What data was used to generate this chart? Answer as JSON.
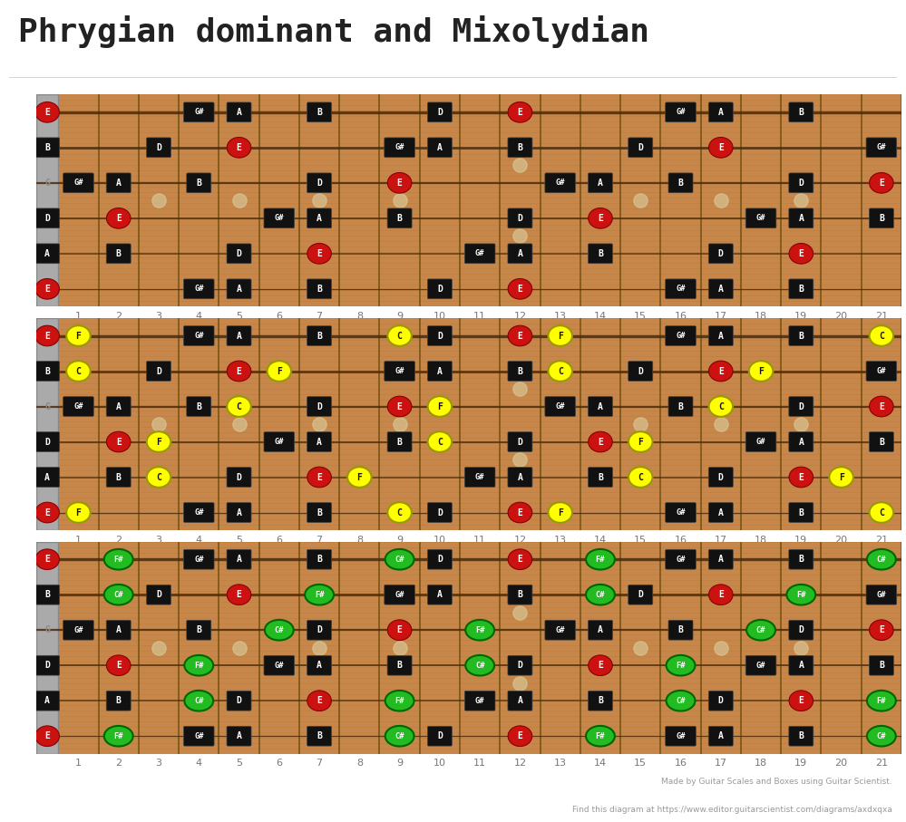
{
  "title": "Phrygian dominant and Mixolydian",
  "bg_color": "#ffffff",
  "wood_color": "#c8874a",
  "fret_color": "#7a5515",
  "marker_bg": "#111111",
  "marker_text": "#ffffff",
  "red_fill": "#cc1111",
  "yellow_fill": "#ffff00",
  "green_fill": "#22bb22",
  "nut_color": "#aaaaaa",
  "num_frets": 21,
  "num_strings": 6,
  "open_strings": [
    "E",
    "B",
    "G",
    "D",
    "A",
    "E"
  ],
  "fret_markers_single": [
    3,
    5,
    7,
    9,
    15,
    17,
    19
  ],
  "fret_markers_double": [
    12
  ],
  "diagram1": {
    "notes": [
      [
        1,
        "E",
        0,
        "red"
      ],
      [
        1,
        "G#",
        4,
        ""
      ],
      [
        1,
        "A",
        5,
        ""
      ],
      [
        1,
        "B",
        7,
        ""
      ],
      [
        1,
        "D",
        10,
        ""
      ],
      [
        1,
        "E",
        12,
        "red"
      ],
      [
        1,
        "G#",
        16,
        ""
      ],
      [
        1,
        "A",
        17,
        ""
      ],
      [
        1,
        "B",
        19,
        ""
      ],
      [
        2,
        "B",
        0,
        ""
      ],
      [
        2,
        "D",
        3,
        ""
      ],
      [
        2,
        "E",
        5,
        "red"
      ],
      [
        2,
        "G#",
        9,
        ""
      ],
      [
        2,
        "A",
        10,
        ""
      ],
      [
        2,
        "B",
        12,
        ""
      ],
      [
        2,
        "D",
        15,
        ""
      ],
      [
        2,
        "E",
        17,
        "red"
      ],
      [
        2,
        "G#",
        21,
        ""
      ],
      [
        3,
        "G#",
        1,
        ""
      ],
      [
        3,
        "A",
        2,
        ""
      ],
      [
        3,
        "B",
        4,
        ""
      ],
      [
        3,
        "D",
        7,
        ""
      ],
      [
        3,
        "E",
        9,
        "red"
      ],
      [
        3,
        "G#",
        13,
        ""
      ],
      [
        3,
        "A",
        14,
        ""
      ],
      [
        3,
        "B",
        16,
        ""
      ],
      [
        3,
        "D",
        19,
        ""
      ],
      [
        3,
        "E",
        21,
        "red"
      ],
      [
        4,
        "D",
        0,
        ""
      ],
      [
        4,
        "E",
        2,
        "red"
      ],
      [
        4,
        "G#",
        6,
        ""
      ],
      [
        4,
        "A",
        7,
        ""
      ],
      [
        4,
        "B",
        9,
        ""
      ],
      [
        4,
        "D",
        12,
        ""
      ],
      [
        4,
        "E",
        14,
        "red"
      ],
      [
        4,
        "G#",
        18,
        ""
      ],
      [
        4,
        "A",
        19,
        ""
      ],
      [
        4,
        "B",
        21,
        ""
      ],
      [
        5,
        "A",
        0,
        ""
      ],
      [
        5,
        "B",
        2,
        ""
      ],
      [
        5,
        "D",
        5,
        ""
      ],
      [
        5,
        "E",
        7,
        "red"
      ],
      [
        5,
        "G#",
        11,
        ""
      ],
      [
        5,
        "A",
        12,
        ""
      ],
      [
        5,
        "B",
        14,
        ""
      ],
      [
        5,
        "D",
        17,
        ""
      ],
      [
        5,
        "E",
        19,
        "red"
      ],
      [
        6,
        "E",
        0,
        "red"
      ],
      [
        6,
        "G#",
        4,
        ""
      ],
      [
        6,
        "A",
        5,
        ""
      ],
      [
        6,
        "B",
        7,
        ""
      ],
      [
        6,
        "D",
        10,
        ""
      ],
      [
        6,
        "E",
        12,
        "red"
      ],
      [
        6,
        "G#",
        16,
        ""
      ],
      [
        6,
        "A",
        17,
        ""
      ],
      [
        6,
        "B",
        19,
        ""
      ]
    ]
  },
  "diagram2": {
    "notes": [
      [
        1,
        "E",
        0,
        "red"
      ],
      [
        1,
        "F",
        1,
        "yellow"
      ],
      [
        1,
        "G#",
        4,
        ""
      ],
      [
        1,
        "A",
        5,
        ""
      ],
      [
        1,
        "B",
        7,
        ""
      ],
      [
        1,
        "C",
        9,
        "yellow"
      ],
      [
        1,
        "D",
        10,
        ""
      ],
      [
        1,
        "E",
        12,
        "red"
      ],
      [
        1,
        "F",
        13,
        "yellow"
      ],
      [
        1,
        "G#",
        16,
        ""
      ],
      [
        1,
        "A",
        17,
        ""
      ],
      [
        1,
        "B",
        19,
        ""
      ],
      [
        1,
        "C",
        21,
        "yellow"
      ],
      [
        2,
        "B",
        0,
        ""
      ],
      [
        2,
        "C",
        1,
        "yellow"
      ],
      [
        2,
        "D",
        3,
        ""
      ],
      [
        2,
        "E",
        5,
        "red"
      ],
      [
        2,
        "F",
        6,
        "yellow"
      ],
      [
        2,
        "G#",
        9,
        ""
      ],
      [
        2,
        "A",
        10,
        ""
      ],
      [
        2,
        "B",
        12,
        ""
      ],
      [
        2,
        "C",
        13,
        "yellow"
      ],
      [
        2,
        "D",
        15,
        ""
      ],
      [
        2,
        "E",
        17,
        "red"
      ],
      [
        2,
        "F",
        18,
        "yellow"
      ],
      [
        2,
        "G#",
        21,
        ""
      ],
      [
        3,
        "G#",
        1,
        ""
      ],
      [
        3,
        "A",
        2,
        ""
      ],
      [
        3,
        "B",
        4,
        ""
      ],
      [
        3,
        "C",
        5,
        "yellow"
      ],
      [
        3,
        "D",
        7,
        ""
      ],
      [
        3,
        "E",
        9,
        "red"
      ],
      [
        3,
        "F",
        10,
        "yellow"
      ],
      [
        3,
        "G#",
        13,
        ""
      ],
      [
        3,
        "A",
        14,
        ""
      ],
      [
        3,
        "B",
        16,
        ""
      ],
      [
        3,
        "C",
        17,
        "yellow"
      ],
      [
        3,
        "D",
        19,
        ""
      ],
      [
        3,
        "E",
        21,
        "red"
      ],
      [
        4,
        "D",
        0,
        ""
      ],
      [
        4,
        "E",
        2,
        "red"
      ],
      [
        4,
        "F",
        3,
        "yellow"
      ],
      [
        4,
        "G#",
        6,
        ""
      ],
      [
        4,
        "A",
        7,
        ""
      ],
      [
        4,
        "B",
        9,
        ""
      ],
      [
        4,
        "C",
        10,
        "yellow"
      ],
      [
        4,
        "D",
        12,
        ""
      ],
      [
        4,
        "E",
        14,
        "red"
      ],
      [
        4,
        "F",
        15,
        "yellow"
      ],
      [
        4,
        "G#",
        18,
        ""
      ],
      [
        4,
        "A",
        19,
        ""
      ],
      [
        4,
        "B",
        21,
        ""
      ],
      [
        5,
        "A",
        0,
        ""
      ],
      [
        5,
        "B",
        2,
        ""
      ],
      [
        5,
        "C",
        3,
        "yellow"
      ],
      [
        5,
        "D",
        5,
        ""
      ],
      [
        5,
        "E",
        7,
        "red"
      ],
      [
        5,
        "F",
        8,
        "yellow"
      ],
      [
        5,
        "G#",
        11,
        ""
      ],
      [
        5,
        "A",
        12,
        ""
      ],
      [
        5,
        "B",
        14,
        ""
      ],
      [
        5,
        "C",
        15,
        "yellow"
      ],
      [
        5,
        "D",
        17,
        ""
      ],
      [
        5,
        "E",
        19,
        "red"
      ],
      [
        5,
        "F",
        20,
        "yellow"
      ],
      [
        6,
        "E",
        0,
        "red"
      ],
      [
        6,
        "F",
        1,
        "yellow"
      ],
      [
        6,
        "G#",
        4,
        ""
      ],
      [
        6,
        "A",
        5,
        ""
      ],
      [
        6,
        "B",
        7,
        ""
      ],
      [
        6,
        "C",
        9,
        "yellow"
      ],
      [
        6,
        "D",
        10,
        ""
      ],
      [
        6,
        "E",
        12,
        "red"
      ],
      [
        6,
        "F",
        13,
        "yellow"
      ],
      [
        6,
        "G#",
        16,
        ""
      ],
      [
        6,
        "A",
        17,
        ""
      ],
      [
        6,
        "B",
        19,
        ""
      ],
      [
        6,
        "C",
        21,
        "yellow"
      ]
    ]
  },
  "diagram3": {
    "notes": [
      [
        1,
        "E",
        0,
        "red"
      ],
      [
        1,
        "F#",
        2,
        "green"
      ],
      [
        1,
        "G#",
        4,
        ""
      ],
      [
        1,
        "A",
        5,
        ""
      ],
      [
        1,
        "B",
        7,
        ""
      ],
      [
        1,
        "C#",
        9,
        "green"
      ],
      [
        1,
        "D",
        10,
        ""
      ],
      [
        1,
        "E",
        12,
        "red"
      ],
      [
        1,
        "F#",
        14,
        "green"
      ],
      [
        1,
        "G#",
        16,
        ""
      ],
      [
        1,
        "A",
        17,
        ""
      ],
      [
        1,
        "B",
        19,
        ""
      ],
      [
        1,
        "C#",
        21,
        "green"
      ],
      [
        2,
        "B",
        0,
        ""
      ],
      [
        2,
        "C#",
        2,
        "green"
      ],
      [
        2,
        "D",
        3,
        ""
      ],
      [
        2,
        "E",
        5,
        "red"
      ],
      [
        2,
        "F#",
        7,
        "green"
      ],
      [
        2,
        "G#",
        9,
        ""
      ],
      [
        2,
        "A",
        10,
        ""
      ],
      [
        2,
        "B",
        12,
        ""
      ],
      [
        2,
        "C#",
        14,
        "green"
      ],
      [
        2,
        "D",
        15,
        ""
      ],
      [
        2,
        "E",
        17,
        "red"
      ],
      [
        2,
        "F#",
        19,
        "green"
      ],
      [
        2,
        "G#",
        21,
        ""
      ],
      [
        3,
        "G#",
        1,
        ""
      ],
      [
        3,
        "A",
        2,
        ""
      ],
      [
        3,
        "B",
        4,
        ""
      ],
      [
        3,
        "C#",
        6,
        "green"
      ],
      [
        3,
        "D",
        7,
        ""
      ],
      [
        3,
        "E",
        9,
        "red"
      ],
      [
        3,
        "F#",
        11,
        "green"
      ],
      [
        3,
        "G#",
        13,
        ""
      ],
      [
        3,
        "A",
        14,
        ""
      ],
      [
        3,
        "B",
        16,
        ""
      ],
      [
        3,
        "C#",
        18,
        "green"
      ],
      [
        3,
        "D",
        19,
        ""
      ],
      [
        3,
        "E",
        21,
        "red"
      ],
      [
        4,
        "D",
        0,
        ""
      ],
      [
        4,
        "E",
        2,
        "red"
      ],
      [
        4,
        "F#",
        4,
        "green"
      ],
      [
        4,
        "G#",
        6,
        ""
      ],
      [
        4,
        "A",
        7,
        ""
      ],
      [
        4,
        "B",
        9,
        ""
      ],
      [
        4,
        "C#",
        11,
        "green"
      ],
      [
        4,
        "D",
        12,
        ""
      ],
      [
        4,
        "E",
        14,
        "red"
      ],
      [
        4,
        "F#",
        16,
        "green"
      ],
      [
        4,
        "G#",
        18,
        ""
      ],
      [
        4,
        "A",
        19,
        ""
      ],
      [
        4,
        "B",
        21,
        ""
      ],
      [
        5,
        "A",
        0,
        ""
      ],
      [
        5,
        "B",
        2,
        ""
      ],
      [
        5,
        "C#",
        4,
        "green"
      ],
      [
        5,
        "D",
        5,
        ""
      ],
      [
        5,
        "E",
        7,
        "red"
      ],
      [
        5,
        "F#",
        9,
        "green"
      ],
      [
        5,
        "G#",
        11,
        ""
      ],
      [
        5,
        "A",
        12,
        ""
      ],
      [
        5,
        "B",
        14,
        ""
      ],
      [
        5,
        "C#",
        16,
        "green"
      ],
      [
        5,
        "D",
        17,
        ""
      ],
      [
        5,
        "E",
        19,
        "red"
      ],
      [
        5,
        "F#",
        21,
        "green"
      ],
      [
        6,
        "E",
        0,
        "red"
      ],
      [
        6,
        "F#",
        2,
        "green"
      ],
      [
        6,
        "G#",
        4,
        ""
      ],
      [
        6,
        "A",
        5,
        ""
      ],
      [
        6,
        "B",
        7,
        ""
      ],
      [
        6,
        "C#",
        9,
        "green"
      ],
      [
        6,
        "D",
        10,
        ""
      ],
      [
        6,
        "E",
        12,
        "red"
      ],
      [
        6,
        "F#",
        14,
        "green"
      ],
      [
        6,
        "G#",
        16,
        ""
      ],
      [
        6,
        "A",
        17,
        ""
      ],
      [
        6,
        "B",
        19,
        ""
      ],
      [
        6,
        "C#",
        21,
        "green"
      ]
    ]
  },
  "footer_line1": "Made by Guitar Scales and Boxes using Guitar Scientist.",
  "footer_line2": "Find this diagram at https://www.editor.guitarscientist.com/diagrams/axdxqxa"
}
